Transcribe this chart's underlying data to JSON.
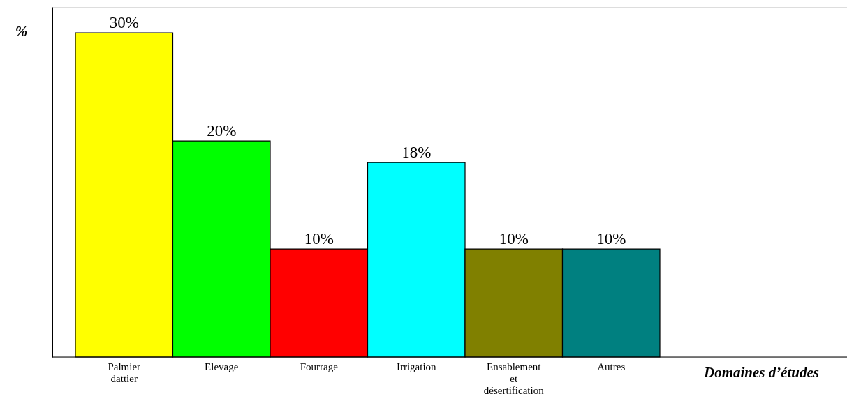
{
  "chart_data": {
    "type": "bar",
    "categories": [
      "Palmier dattier",
      "Elevage",
      "Fourrage",
      "Irrigation",
      "Ensablement et désertification",
      "Autres"
    ],
    "values": [
      30,
      20,
      10,
      18,
      10,
      10
    ],
    "colors": [
      "#ffff00",
      "#00ff00",
      "#ff0000",
      "#00ffff",
      "#808000",
      "#008080"
    ],
    "value_labels": [
      "30%",
      "20%",
      "10%",
      "18%",
      "10%",
      "10%"
    ],
    "xlabel": "Domaines d’études",
    "ylabel": "%",
    "grid": false,
    "tick_labels": "x"
  }
}
